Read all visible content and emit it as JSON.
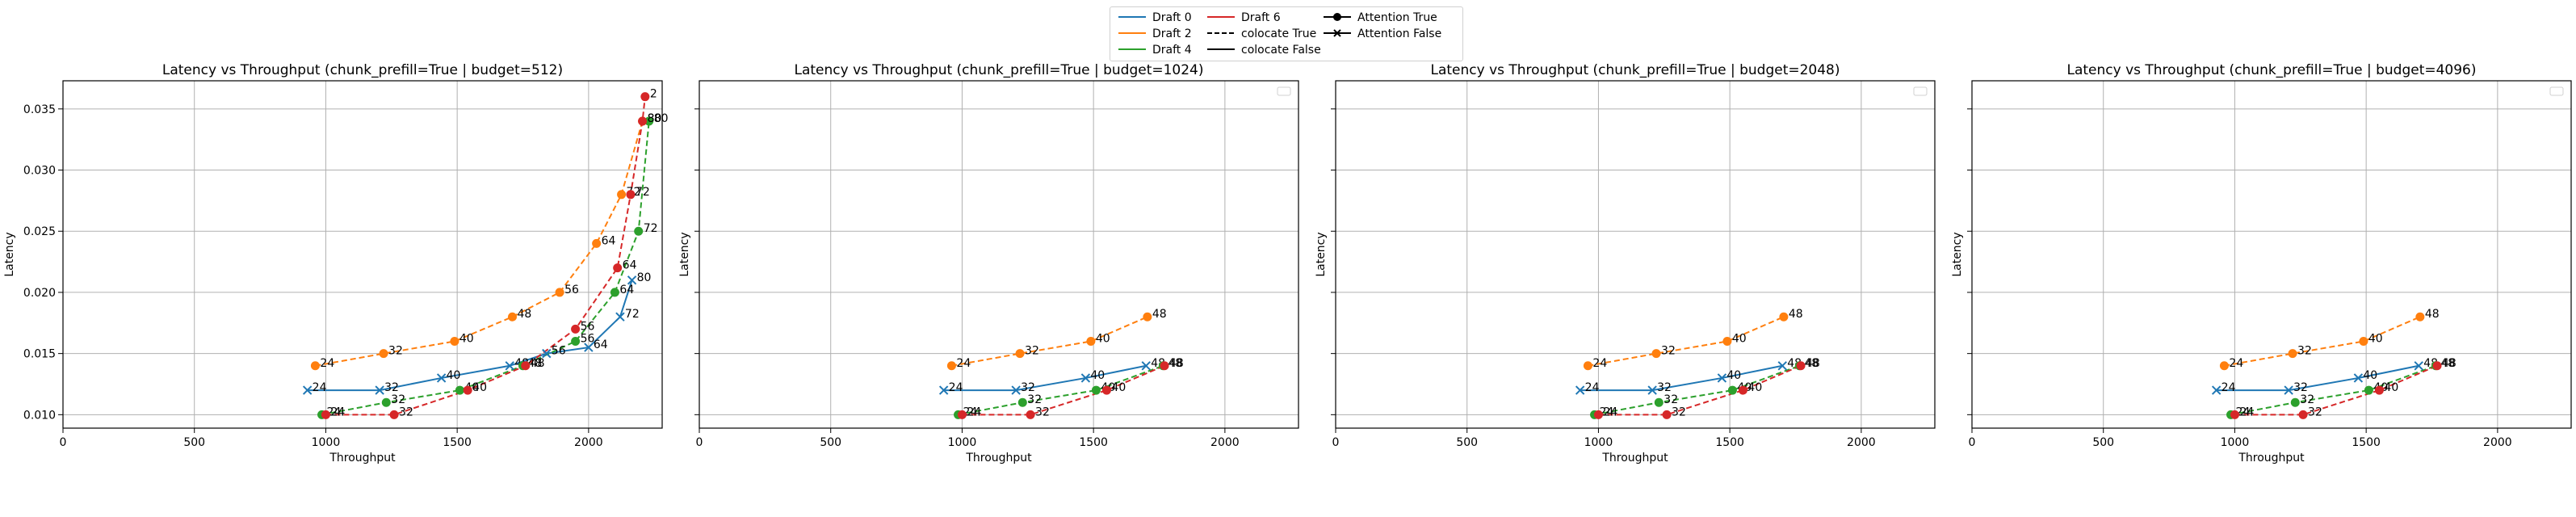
{
  "colors": {
    "draft_0": "#1f77b4",
    "draft_2": "#ff7f0e",
    "draft_4": "#2ca02c",
    "draft_6": "#d62728"
  },
  "legend": {
    "items": [
      {
        "label": "Draft 0",
        "kind": "line",
        "color": "#1f77b4",
        "dash": false
      },
      {
        "label": "Draft 2",
        "kind": "line",
        "color": "#ff7f0e",
        "dash": false
      },
      {
        "label": "Draft 4",
        "kind": "line",
        "color": "#2ca02c",
        "dash": false
      },
      {
        "label": "Draft 6",
        "kind": "line",
        "color": "#d62728",
        "dash": false
      },
      {
        "label": "colocate True",
        "kind": "line",
        "color": "#000000",
        "dash": true
      },
      {
        "label": "colocate False",
        "kind": "line",
        "color": "#000000",
        "dash": false
      },
      {
        "label": "Attention True",
        "kind": "marker",
        "marker": "circle",
        "color": "#000000"
      },
      {
        "label": "Attention False",
        "kind": "marker",
        "marker": "x",
        "color": "#000000"
      }
    ]
  },
  "chart_data": [
    {
      "type": "line",
      "title": "Latency vs Throughput (chunk_prefill=True | budget=512)",
      "xlabel": "Throughput",
      "ylabel": "Latency",
      "xlim": [
        0,
        2280
      ],
      "ylim": [
        0.0089,
        0.0373
      ],
      "xticks": [
        "0",
        "500",
        "1000",
        "1500",
        "2000"
      ],
      "xtick_values": [
        0,
        500,
        1000,
        1500,
        2000
      ],
      "yticks": [
        "0.010",
        "0.015",
        "0.020",
        "0.025",
        "0.030",
        "0.035"
      ],
      "ytick_values": [
        0.01,
        0.015,
        0.02,
        0.025,
        0.03,
        0.035
      ],
      "grid": true,
      "series": [
        {
          "draft": "Draft 0",
          "color": "#1f77b4",
          "dashed": false,
          "marker": "x",
          "points": [
            [
              930,
              0.012,
              "24"
            ],
            [
              1205,
              0.012,
              "32"
            ],
            [
              1440,
              0.013,
              "40"
            ],
            [
              1700,
              0.014,
              "48"
            ],
            [
              1840,
              0.015,
              "56"
            ],
            [
              2000,
              0.0155,
              "64"
            ],
            [
              2120,
              0.018,
              "72"
            ],
            [
              2165,
              0.021,
              "80"
            ]
          ]
        },
        {
          "draft": "Draft 2",
          "color": "#ff7f0e",
          "dashed": true,
          "marker": "circle",
          "points": [
            [
              960,
              0.014,
              "24"
            ],
            [
              1220,
              0.015,
              "32"
            ],
            [
              1490,
              0.016,
              "40"
            ],
            [
              1710,
              0.018,
              "48"
            ],
            [
              1890,
              0.02,
              "56"
            ],
            [
              2030,
              0.024,
              "64"
            ],
            [
              2125,
              0.028,
              "72"
            ],
            [
              2205,
              0.034,
              "80"
            ]
          ]
        },
        {
          "draft": "Draft 4",
          "color": "#2ca02c",
          "dashed": true,
          "marker": "circle",
          "points": [
            [
              985,
              0.01,
              "24"
            ],
            [
              1230,
              0.011,
              "32"
            ],
            [
              1510,
              0.012,
              "40"
            ],
            [
              1750,
              0.014,
              "48"
            ],
            [
              1950,
              0.016,
              "56"
            ],
            [
              2100,
              0.02,
              "64"
            ],
            [
              2190,
              0.025,
              "72"
            ],
            [
              2230,
              0.034,
              "80"
            ]
          ]
        },
        {
          "draft": "Draft 6",
          "color": "#d62728",
          "dashed": true,
          "marker": "circle",
          "points": [
            [
              1000,
              0.01,
              "24"
            ],
            [
              1260,
              0.01,
              "32"
            ],
            [
              1540,
              0.012,
              "40"
            ],
            [
              1760,
              0.014,
              "48"
            ],
            [
              1950,
              0.017,
              "56"
            ],
            [
              2110,
              0.022,
              "64"
            ],
            [
              2160,
              0.028,
              "72"
            ],
            [
              2205,
              0.034,
              "80"
            ],
            [
              2215,
              0.036,
              "2"
            ]
          ]
        }
      ]
    },
    {
      "type": "line",
      "title": "Latency vs Throughput (chunk_prefill=True | budget=1024)",
      "xlabel": "Throughput",
      "ylabel": "Latency",
      "xlim": [
        0,
        2280
      ],
      "ylim": [
        0.0089,
        0.0373
      ],
      "xticks": [
        "0",
        "500",
        "1000",
        "1500",
        "2000"
      ],
      "xtick_values": [
        0,
        500,
        1000,
        1500,
        2000
      ],
      "yticks": [
        "",
        "",
        "",
        "",
        "",
        ""
      ],
      "ytick_values": [
        0.01,
        0.015,
        0.02,
        0.025,
        0.03,
        0.035
      ],
      "grid": true,
      "series": [
        {
          "draft": "Draft 0",
          "color": "#1f77b4",
          "dashed": false,
          "marker": "x",
          "points": [
            [
              930,
              0.012,
              "24"
            ],
            [
              1205,
              0.012,
              "32"
            ],
            [
              1470,
              0.013,
              "40"
            ],
            [
              1700,
              0.014,
              "48"
            ]
          ]
        },
        {
          "draft": "Draft 2",
          "color": "#ff7f0e",
          "dashed": true,
          "marker": "circle",
          "points": [
            [
              960,
              0.014,
              "24"
            ],
            [
              1220,
              0.015,
              "32"
            ],
            [
              1490,
              0.016,
              "40"
            ],
            [
              1705,
              0.018,
              "48"
            ]
          ]
        },
        {
          "draft": "Draft 4",
          "color": "#2ca02c",
          "dashed": true,
          "marker": "circle",
          "points": [
            [
              985,
              0.01,
              "24"
            ],
            [
              1230,
              0.011,
              "32"
            ],
            [
              1510,
              0.012,
              "40"
            ],
            [
              1765,
              0.014,
              "48"
            ]
          ]
        },
        {
          "draft": "Draft 6",
          "color": "#d62728",
          "dashed": true,
          "marker": "circle",
          "points": [
            [
              1000,
              0.01,
              "24"
            ],
            [
              1260,
              0.01,
              "32"
            ],
            [
              1550,
              0.012,
              "40"
            ],
            [
              1770,
              0.014,
              "48"
            ]
          ]
        }
      ]
    },
    {
      "type": "line",
      "title": "Latency vs Throughput (chunk_prefill=True | budget=2048)",
      "xlabel": "Throughput",
      "ylabel": "Latency",
      "xlim": [
        0,
        2280
      ],
      "ylim": [
        0.0089,
        0.0373
      ],
      "xticks": [
        "0",
        "500",
        "1000",
        "1500",
        "2000"
      ],
      "xtick_values": [
        0,
        500,
        1000,
        1500,
        2000
      ],
      "yticks": [
        "",
        "",
        "",
        "",
        "",
        ""
      ],
      "ytick_values": [
        0.01,
        0.015,
        0.02,
        0.025,
        0.03,
        0.035
      ],
      "grid": true,
      "series": [
        {
          "draft": "Draft 0",
          "color": "#1f77b4",
          "dashed": false,
          "marker": "x",
          "points": [
            [
              930,
              0.012,
              "24"
            ],
            [
              1205,
              0.012,
              "32"
            ],
            [
              1470,
              0.013,
              "40"
            ],
            [
              1700,
              0.014,
              "48"
            ]
          ]
        },
        {
          "draft": "Draft 2",
          "color": "#ff7f0e",
          "dashed": true,
          "marker": "circle",
          "points": [
            [
              960,
              0.014,
              "24"
            ],
            [
              1220,
              0.015,
              "32"
            ],
            [
              1490,
              0.016,
              "40"
            ],
            [
              1705,
              0.018,
              "48"
            ]
          ]
        },
        {
          "draft": "Draft 4",
          "color": "#2ca02c",
          "dashed": true,
          "marker": "circle",
          "points": [
            [
              985,
              0.01,
              "24"
            ],
            [
              1230,
              0.011,
              "32"
            ],
            [
              1510,
              0.012,
              "40"
            ],
            [
              1765,
              0.014,
              "48"
            ]
          ]
        },
        {
          "draft": "Draft 6",
          "color": "#d62728",
          "dashed": true,
          "marker": "circle",
          "points": [
            [
              1000,
              0.01,
              "24"
            ],
            [
              1260,
              0.01,
              "32"
            ],
            [
              1550,
              0.012,
              "40"
            ],
            [
              1770,
              0.014,
              "48"
            ]
          ]
        }
      ]
    },
    {
      "type": "line",
      "title": "Latency vs Throughput (chunk_prefill=True | budget=4096)",
      "xlabel": "Throughput",
      "ylabel": "Latency",
      "xlim": [
        0,
        2280
      ],
      "ylim": [
        0.0089,
        0.0373
      ],
      "xticks": [
        "0",
        "500",
        "1000",
        "1500",
        "2000"
      ],
      "xtick_values": [
        0,
        500,
        1000,
        1500,
        2000
      ],
      "yticks": [
        "",
        "",
        "",
        "",
        "",
        ""
      ],
      "ytick_values": [
        0.01,
        0.015,
        0.02,
        0.025,
        0.03,
        0.035
      ],
      "grid": true,
      "series": [
        {
          "draft": "Draft 0",
          "color": "#1f77b4",
          "dashed": false,
          "marker": "x",
          "points": [
            [
              930,
              0.012,
              "24"
            ],
            [
              1205,
              0.012,
              "32"
            ],
            [
              1470,
              0.013,
              "40"
            ],
            [
              1700,
              0.014,
              "48"
            ]
          ]
        },
        {
          "draft": "Draft 2",
          "color": "#ff7f0e",
          "dashed": true,
          "marker": "circle",
          "points": [
            [
              960,
              0.014,
              "24"
            ],
            [
              1220,
              0.015,
              "32"
            ],
            [
              1490,
              0.016,
              "40"
            ],
            [
              1705,
              0.018,
              "48"
            ]
          ]
        },
        {
          "draft": "Draft 4",
          "color": "#2ca02c",
          "dashed": true,
          "marker": "circle",
          "points": [
            [
              985,
              0.01,
              "24"
            ],
            [
              1230,
              0.011,
              "32"
            ],
            [
              1510,
              0.012,
              "40"
            ],
            [
              1765,
              0.014,
              "48"
            ]
          ]
        },
        {
          "draft": "Draft 6",
          "color": "#d62728",
          "dashed": true,
          "marker": "circle",
          "points": [
            [
              1000,
              0.01,
              "24"
            ],
            [
              1260,
              0.01,
              "32"
            ],
            [
              1550,
              0.012,
              "40"
            ],
            [
              1770,
              0.014,
              "48"
            ]
          ]
        }
      ]
    }
  ]
}
